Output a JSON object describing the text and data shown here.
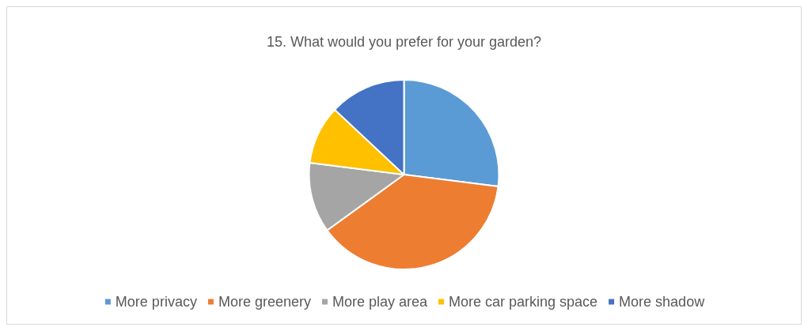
{
  "chart_data": {
    "type": "pie",
    "title": "15. What would you prefer for your garden?",
    "categories": [
      "More privacy",
      "More greenery",
      "More play area",
      "More car parking space",
      "More shadow"
    ],
    "values": [
      27,
      38,
      12,
      10,
      13
    ],
    "colors": [
      "#5b9bd5",
      "#ed7d31",
      "#a5a5a5",
      "#ffc000",
      "#4472c4"
    ],
    "legend": "bottom"
  }
}
